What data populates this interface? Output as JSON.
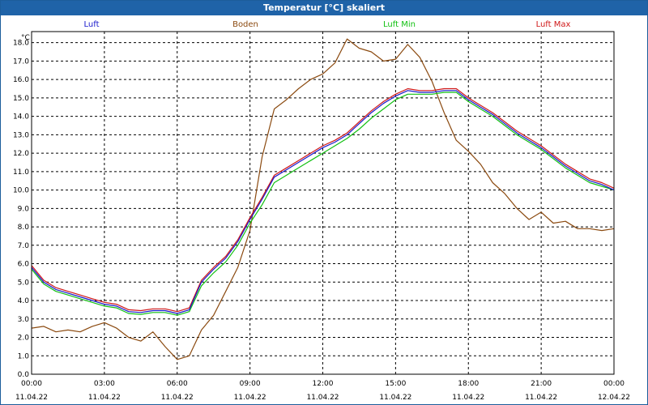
{
  "window": {
    "title": "Temperatur [°C] skaliert"
  },
  "chart_data": {
    "type": "line",
    "title": "Temperatur [°C] skaliert",
    "ylabel": "°C",
    "ylim": [
      0.0,
      18.6
    ],
    "xlim": [
      0,
      24
    ],
    "grid": true,
    "legend_position": "top",
    "y_ticks": [
      "0.0",
      "1.0",
      "2.0",
      "3.0",
      "4.0",
      "5.0",
      "6.0",
      "7.0",
      "8.0",
      "9.0",
      "10.0",
      "11.0",
      "12.0",
      "13.0",
      "14.0",
      "15.0",
      "16.0",
      "17.0",
      "18.0"
    ],
    "x_ticks": [
      {
        "time": "00:00",
        "date": "11.04.22"
      },
      {
        "time": "03:00",
        "date": "11.04.22"
      },
      {
        "time": "06:00",
        "date": "11.04.22"
      },
      {
        "time": "09:00",
        "date": "11.04.22"
      },
      {
        "time": "12:00",
        "date": "11.04.22"
      },
      {
        "time": "15:00",
        "date": "11.04.22"
      },
      {
        "time": "18:00",
        "date": "11.04.22"
      },
      {
        "time": "21:00",
        "date": "11.04.22"
      },
      {
        "time": "00:00",
        "date": "12.04.22"
      }
    ],
    "series": [
      {
        "name": "Luft",
        "color": "#1a1acc",
        "x": [
          0,
          0.5,
          1,
          1.5,
          2,
          2.5,
          3,
          3.5,
          4,
          4.5,
          5,
          5.5,
          6,
          6.5,
          7,
          7.5,
          8,
          8.5,
          9,
          9.5,
          10,
          10.5,
          11,
          11.5,
          12,
          12.5,
          13,
          13.5,
          14,
          14.5,
          15,
          15.5,
          16,
          16.5,
          17,
          17.5,
          18,
          18.5,
          19,
          19.5,
          20,
          20.5,
          21,
          21.5,
          22,
          22.5,
          23,
          23.5,
          24
        ],
        "values": [
          5.8,
          5.0,
          4.6,
          4.4,
          4.2,
          4.0,
          3.8,
          3.7,
          3.4,
          3.35,
          3.45,
          3.45,
          3.3,
          3.5,
          5.0,
          5.7,
          6.3,
          7.2,
          8.4,
          9.5,
          10.7,
          11.1,
          11.5,
          11.9,
          12.3,
          12.6,
          13.0,
          13.6,
          14.2,
          14.7,
          15.1,
          15.4,
          15.3,
          15.3,
          15.4,
          15.4,
          14.9,
          14.5,
          14.1,
          13.6,
          13.1,
          12.7,
          12.3,
          11.8,
          11.3,
          10.9,
          10.5,
          10.3,
          10.0
        ]
      },
      {
        "name": "Boden",
        "color": "#8b4a10",
        "x": [
          0,
          0.5,
          1,
          1.5,
          2,
          2.5,
          3,
          3.5,
          4,
          4.5,
          5,
          5.5,
          6,
          6.5,
          7,
          7.5,
          8,
          8.5,
          9,
          9.5,
          10,
          10.5,
          11,
          11.5,
          12,
          12.5,
          13,
          13.5,
          14,
          14.5,
          15,
          15.5,
          16,
          16.5,
          17,
          17.5,
          18,
          18.5,
          19,
          19.5,
          20,
          20.5,
          21,
          21.5,
          22,
          22.5,
          23,
          23.5,
          24
        ],
        "values": [
          2.5,
          2.6,
          2.3,
          2.4,
          2.3,
          2.6,
          2.8,
          2.5,
          2.0,
          1.8,
          2.3,
          1.5,
          0.8,
          1.0,
          2.4,
          3.2,
          4.5,
          5.8,
          7.8,
          11.8,
          14.4,
          14.9,
          15.5,
          16.0,
          16.3,
          16.9,
          18.2,
          17.7,
          17.5,
          17.0,
          17.1,
          17.9,
          17.2,
          15.9,
          14.2,
          12.7,
          12.1,
          11.4,
          10.4,
          9.8,
          9.0,
          8.4,
          8.8,
          8.2,
          8.3,
          7.9,
          7.9,
          7.8,
          7.9
        ]
      },
      {
        "name": "Luft Min",
        "color": "#12c012",
        "x": [
          0,
          0.5,
          1,
          1.5,
          2,
          2.5,
          3,
          3.5,
          4,
          4.5,
          5,
          5.5,
          6,
          6.5,
          7,
          7.5,
          8,
          8.5,
          9,
          9.5,
          10,
          10.5,
          11,
          11.5,
          12,
          12.5,
          13,
          13.5,
          14,
          14.5,
          15,
          15.5,
          16,
          16.5,
          17,
          17.5,
          18,
          18.5,
          19,
          19.5,
          20,
          20.5,
          21,
          21.5,
          22,
          22.5,
          23,
          23.5,
          24
        ],
        "values": [
          5.7,
          4.9,
          4.5,
          4.3,
          4.1,
          3.9,
          3.7,
          3.6,
          3.3,
          3.25,
          3.35,
          3.35,
          3.2,
          3.4,
          4.8,
          5.5,
          6.1,
          7.0,
          8.2,
          9.2,
          10.4,
          10.8,
          11.2,
          11.6,
          12.0,
          12.4,
          12.8,
          13.3,
          13.9,
          14.4,
          14.9,
          15.2,
          15.2,
          15.2,
          15.3,
          15.3,
          14.8,
          14.4,
          14.0,
          13.5,
          13.0,
          12.6,
          12.2,
          11.7,
          11.2,
          10.8,
          10.4,
          10.2,
          10.0
        ]
      },
      {
        "name": "Luft Max",
        "color": "#d01818",
        "x": [
          0,
          0.5,
          1,
          1.5,
          2,
          2.5,
          3,
          3.5,
          4,
          4.5,
          5,
          5.5,
          6,
          6.5,
          7,
          7.5,
          8,
          8.5,
          9,
          9.5,
          10,
          10.5,
          11,
          11.5,
          12,
          12.5,
          13,
          13.5,
          14,
          14.5,
          15,
          15.5,
          16,
          16.5,
          17,
          17.5,
          18,
          18.5,
          19,
          19.5,
          20,
          20.5,
          21,
          21.5,
          22,
          22.5,
          23,
          23.5,
          24
        ],
        "values": [
          5.9,
          5.1,
          4.7,
          4.5,
          4.3,
          4.1,
          3.9,
          3.8,
          3.5,
          3.45,
          3.55,
          3.55,
          3.4,
          3.6,
          5.1,
          5.8,
          6.4,
          7.3,
          8.5,
          9.6,
          10.8,
          11.2,
          11.6,
          12.0,
          12.4,
          12.7,
          13.1,
          13.7,
          14.3,
          14.8,
          15.2,
          15.5,
          15.4,
          15.4,
          15.5,
          15.5,
          15.0,
          14.6,
          14.2,
          13.7,
          13.2,
          12.8,
          12.4,
          11.9,
          11.4,
          11.0,
          10.6,
          10.4,
          10.1
        ]
      }
    ]
  }
}
